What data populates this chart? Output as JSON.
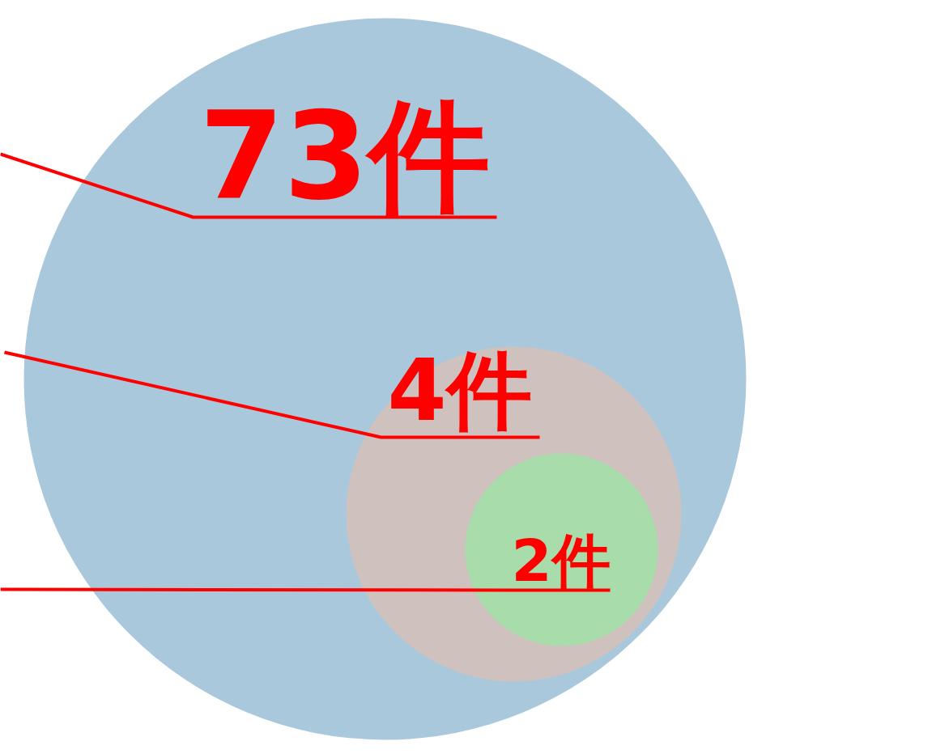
{
  "chart_data": {
    "type": "other",
    "values": [
      73,
      4,
      2
    ],
    "value_labels": [
      "73件",
      "4件",
      "2件"
    ],
    "colors": [
      "#a9c8dc",
      "#cfc2be",
      "#a8dcab"
    ]
  }
}
